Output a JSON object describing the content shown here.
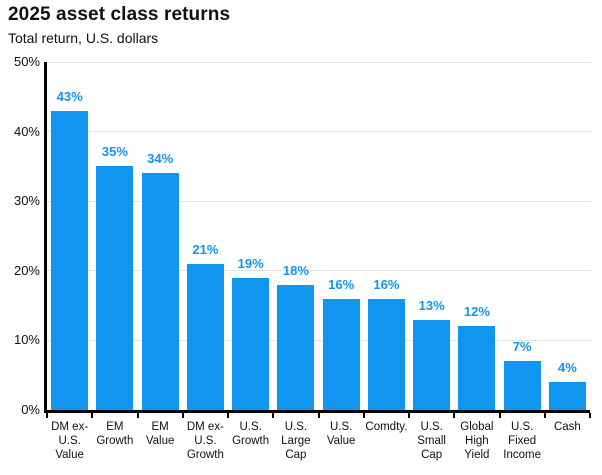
{
  "chart_data": {
    "type": "bar",
    "title": "2025 asset class returns",
    "subtitle": "Total return, U.S. dollars",
    "categories": [
      "DM ex-U.S. Value",
      "EM Growth",
      "EM Value",
      "DM ex-U.S. Growth",
      "U.S. Growth",
      "U.S. Large Cap",
      "U.S. Value",
      "Comdty.",
      "U.S. Small Cap",
      "Global High Yield",
      "U.S. Fixed Income",
      "Cash"
    ],
    "values": [
      43,
      35,
      34,
      21,
      19,
      18,
      16,
      16,
      13,
      12,
      7,
      4
    ],
    "bar_labels": [
      "43%",
      "35%",
      "34%",
      "21%",
      "19%",
      "18%",
      "16%",
      "16%",
      "13%",
      "12%",
      "7%",
      "4%"
    ],
    "xlabel": "",
    "ylabel": "",
    "ylim": [
      0,
      50
    ],
    "ytick_values": [
      0,
      10,
      20,
      30,
      40,
      50
    ],
    "ytick_labels": [
      "0%",
      "10%",
      "20%",
      "30%",
      "40%",
      "50%"
    ],
    "grid": true,
    "legend": false,
    "colors": {
      "bar": "#1096f0",
      "bar_label": "#1096f0",
      "grid": "#e2e2e2",
      "axis": "#000000",
      "text": "#111111"
    }
  }
}
